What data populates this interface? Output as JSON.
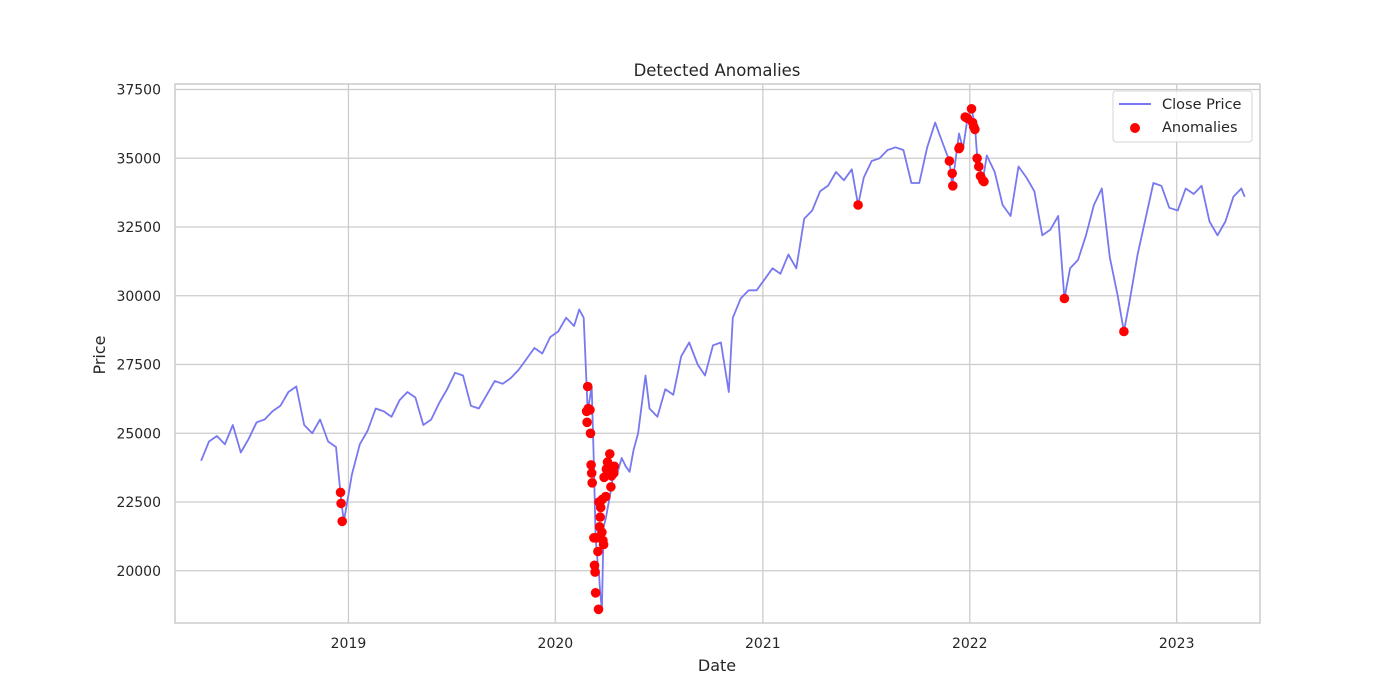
{
  "chart_data": {
    "type": "line",
    "title": "Detected Anomalies",
    "xlabel": "Date",
    "ylabel": "Price",
    "xlim": [
      "2018-03-01",
      "2023-05-28"
    ],
    "ylim": [
      18100,
      37700
    ],
    "x_ticks": [
      "2019-01-01",
      "2020-01-01",
      "2021-01-01",
      "2022-01-01",
      "2023-01-01"
    ],
    "x_tick_labels": [
      "2019",
      "2020",
      "2021",
      "2022",
      "2023"
    ],
    "y_ticks": [
      20000,
      22500,
      25000,
      27500,
      30000,
      32500,
      35000,
      37500
    ],
    "y_tick_labels": [
      "20000",
      "22500",
      "25000",
      "27500",
      "30000",
      "32500",
      "35000",
      "37500"
    ],
    "grid": true,
    "legend_position": "top-right",
    "series": [
      {
        "name": "Close Price",
        "kind": "line",
        "color": "#7878f0",
        "points": [
          [
            "2018-04-16",
            24000
          ],
          [
            "2018-04-30",
            24700
          ],
          [
            "2018-05-14",
            24900
          ],
          [
            "2018-05-28",
            24600
          ],
          [
            "2018-06-11",
            25300
          ],
          [
            "2018-06-25",
            24300
          ],
          [
            "2018-07-09",
            24800
          ],
          [
            "2018-07-23",
            25400
          ],
          [
            "2018-08-06",
            25500
          ],
          [
            "2018-08-20",
            25800
          ],
          [
            "2018-09-03",
            26000
          ],
          [
            "2018-09-17",
            26500
          ],
          [
            "2018-10-01",
            26700
          ],
          [
            "2018-10-15",
            25300
          ],
          [
            "2018-10-29",
            25000
          ],
          [
            "2018-11-12",
            25500
          ],
          [
            "2018-11-26",
            24700
          ],
          [
            "2018-12-10",
            24500
          ],
          [
            "2018-12-17",
            23000
          ],
          [
            "2018-12-20",
            22400
          ],
          [
            "2018-12-24",
            21800
          ],
          [
            "2019-01-07",
            23500
          ],
          [
            "2019-01-21",
            24600
          ],
          [
            "2019-02-04",
            25100
          ],
          [
            "2019-02-18",
            25900
          ],
          [
            "2019-03-04",
            25800
          ],
          [
            "2019-03-18",
            25600
          ],
          [
            "2019-04-01",
            26200
          ],
          [
            "2019-04-15",
            26500
          ],
          [
            "2019-04-29",
            26300
          ],
          [
            "2019-05-13",
            25300
          ],
          [
            "2019-05-27",
            25500
          ],
          [
            "2019-06-10",
            26100
          ],
          [
            "2019-06-24",
            26600
          ],
          [
            "2019-07-08",
            27200
          ],
          [
            "2019-07-22",
            27100
          ],
          [
            "2019-08-05",
            26000
          ],
          [
            "2019-08-19",
            25900
          ],
          [
            "2019-09-02",
            26400
          ],
          [
            "2019-09-16",
            26900
          ],
          [
            "2019-09-30",
            26800
          ],
          [
            "2019-10-14",
            27000
          ],
          [
            "2019-10-28",
            27300
          ],
          [
            "2019-11-11",
            27700
          ],
          [
            "2019-11-25",
            28100
          ],
          [
            "2019-12-09",
            27900
          ],
          [
            "2019-12-23",
            28500
          ],
          [
            "2020-01-06",
            28700
          ],
          [
            "2020-01-20",
            29200
          ],
          [
            "2020-02-03",
            28900
          ],
          [
            "2020-02-12",
            29500
          ],
          [
            "2020-02-20",
            29200
          ],
          [
            "2020-02-27",
            25800
          ],
          [
            "2020-03-05",
            26700
          ],
          [
            "2020-03-09",
            23850
          ],
          [
            "2020-03-12",
            21200
          ],
          [
            "2020-03-16",
            20200
          ],
          [
            "2020-03-18",
            19900
          ],
          [
            "2020-03-20",
            19200
          ],
          [
            "2020-03-23",
            18600
          ],
          [
            "2020-03-26",
            21600
          ],
          [
            "2020-03-30",
            21900
          ],
          [
            "2020-04-06",
            22700
          ],
          [
            "2020-04-13",
            23600
          ],
          [
            "2020-04-20",
            23600
          ],
          [
            "2020-04-27",
            24100
          ],
          [
            "2020-05-04",
            23800
          ],
          [
            "2020-05-11",
            23600
          ],
          [
            "2020-05-18",
            24400
          ],
          [
            "2020-05-26",
            25000
          ],
          [
            "2020-06-08",
            27100
          ],
          [
            "2020-06-15",
            25900
          ],
          [
            "2020-06-29",
            25600
          ],
          [
            "2020-07-13",
            26600
          ],
          [
            "2020-07-27",
            26400
          ],
          [
            "2020-08-10",
            27800
          ],
          [
            "2020-08-24",
            28300
          ],
          [
            "2020-09-08",
            27500
          ],
          [
            "2020-09-21",
            27100
          ],
          [
            "2020-10-05",
            28200
          ],
          [
            "2020-10-19",
            28300
          ],
          [
            "2020-11-02",
            26500
          ],
          [
            "2020-11-09",
            29200
          ],
          [
            "2020-11-23",
            29900
          ],
          [
            "2020-12-07",
            30200
          ],
          [
            "2020-12-21",
            30200
          ],
          [
            "2021-01-04",
            30600
          ],
          [
            "2021-01-18",
            31000
          ],
          [
            "2021-02-01",
            30800
          ],
          [
            "2021-02-15",
            31500
          ],
          [
            "2021-03-01",
            31000
          ],
          [
            "2021-03-15",
            32800
          ],
          [
            "2021-03-29",
            33100
          ],
          [
            "2021-04-12",
            33800
          ],
          [
            "2021-04-26",
            34000
          ],
          [
            "2021-05-10",
            34500
          ],
          [
            "2021-05-24",
            34200
          ],
          [
            "2021-06-07",
            34600
          ],
          [
            "2021-06-18",
            33300
          ],
          [
            "2021-06-28",
            34300
          ],
          [
            "2021-07-12",
            34900
          ],
          [
            "2021-07-26",
            35000
          ],
          [
            "2021-08-09",
            35300
          ],
          [
            "2021-08-23",
            35400
          ],
          [
            "2021-09-06",
            35300
          ],
          [
            "2021-09-20",
            34100
          ],
          [
            "2021-10-04",
            34100
          ],
          [
            "2021-10-18",
            35400
          ],
          [
            "2021-11-01",
            36300
          ],
          [
            "2021-11-08",
            35900
          ],
          [
            "2021-11-26",
            34900
          ],
          [
            "2021-12-01",
            34000
          ],
          [
            "2021-12-13",
            35900
          ],
          [
            "2021-12-20",
            35350
          ],
          [
            "2021-12-28",
            36450
          ],
          [
            "2022-01-04",
            36800
          ],
          [
            "2022-01-10",
            36200
          ],
          [
            "2022-01-14",
            35100
          ],
          [
            "2022-01-24",
            34200
          ],
          [
            "2022-01-31",
            35100
          ],
          [
            "2022-02-14",
            34500
          ],
          [
            "2022-02-28",
            33300
          ],
          [
            "2022-03-14",
            32900
          ],
          [
            "2022-03-28",
            34700
          ],
          [
            "2022-04-11",
            34300
          ],
          [
            "2022-04-25",
            33800
          ],
          [
            "2022-05-09",
            32200
          ],
          [
            "2022-05-23",
            32400
          ],
          [
            "2022-06-06",
            32900
          ],
          [
            "2022-06-17",
            29900
          ],
          [
            "2022-06-27",
            31000
          ],
          [
            "2022-07-11",
            31300
          ],
          [
            "2022-07-25",
            32200
          ],
          [
            "2022-08-08",
            33300
          ],
          [
            "2022-08-22",
            33900
          ],
          [
            "2022-09-05",
            31400
          ],
          [
            "2022-09-19",
            30000
          ],
          [
            "2022-09-30",
            28700
          ],
          [
            "2022-10-10",
            29800
          ],
          [
            "2022-10-24",
            31500
          ],
          [
            "2022-11-07",
            32800
          ],
          [
            "2022-11-21",
            34100
          ],
          [
            "2022-12-05",
            34000
          ],
          [
            "2022-12-19",
            33200
          ],
          [
            "2023-01-03",
            33100
          ],
          [
            "2023-01-17",
            33900
          ],
          [
            "2023-01-31",
            33700
          ],
          [
            "2023-02-14",
            34000
          ],
          [
            "2023-02-28",
            32700
          ],
          [
            "2023-03-14",
            32200
          ],
          [
            "2023-03-28",
            32700
          ],
          [
            "2023-04-11",
            33600
          ],
          [
            "2023-04-25",
            33900
          ],
          [
            "2023-05-01",
            33600
          ]
        ]
      },
      {
        "name": "Anomalies",
        "kind": "scatter",
        "color": "#ff0000",
        "points": [
          [
            "2018-12-18",
            22850
          ],
          [
            "2018-12-19",
            22450
          ],
          [
            "2018-12-21",
            21800
          ],
          [
            "2020-02-25",
            25800
          ],
          [
            "2020-02-26",
            25400
          ],
          [
            "2020-02-27",
            26700
          ],
          [
            "2020-02-28",
            25900
          ],
          [
            "2020-03-02",
            25850
          ],
          [
            "2020-03-03",
            25000
          ],
          [
            "2020-03-04",
            23850
          ],
          [
            "2020-03-05",
            23550
          ],
          [
            "2020-03-06",
            23200
          ],
          [
            "2020-03-09",
            21200
          ],
          [
            "2020-03-10",
            20200
          ],
          [
            "2020-03-11",
            19950
          ],
          [
            "2020-03-12",
            19200
          ],
          [
            "2020-03-13",
            21200
          ],
          [
            "2020-03-16",
            20700
          ],
          [
            "2020-03-17",
            18600
          ],
          [
            "2020-03-18",
            22500
          ],
          [
            "2020-03-19",
            21600
          ],
          [
            "2020-03-20",
            21950
          ],
          [
            "2020-03-21",
            22300
          ],
          [
            "2020-03-23",
            21400
          ],
          [
            "2020-03-24",
            22600
          ],
          [
            "2020-03-25",
            21100
          ],
          [
            "2020-03-26",
            20950
          ],
          [
            "2020-03-27",
            23400
          ],
          [
            "2020-03-30",
            22700
          ],
          [
            "2020-03-31",
            23700
          ],
          [
            "2020-04-01",
            23500
          ],
          [
            "2020-04-02",
            23950
          ],
          [
            "2020-04-06",
            24250
          ],
          [
            "2020-04-07",
            23700
          ],
          [
            "2020-04-08",
            23050
          ],
          [
            "2020-04-09",
            23450
          ],
          [
            "2020-04-13",
            23550
          ],
          [
            "2020-04-14",
            23800
          ],
          [
            "2021-06-18",
            33300
          ],
          [
            "2021-11-26",
            34900
          ],
          [
            "2021-12-01",
            34450
          ],
          [
            "2021-12-02",
            34000
          ],
          [
            "2021-12-13",
            35350
          ],
          [
            "2021-12-14",
            35400
          ],
          [
            "2021-12-24",
            36500
          ],
          [
            "2021-12-28",
            36450
          ],
          [
            "2022-01-04",
            36800
          ],
          [
            "2022-01-06",
            36300
          ],
          [
            "2022-01-08",
            36150
          ],
          [
            "2022-01-10",
            36050
          ],
          [
            "2022-01-14",
            35000
          ],
          [
            "2022-01-17",
            34700
          ],
          [
            "2022-01-20",
            34350
          ],
          [
            "2022-01-24",
            34200
          ],
          [
            "2022-01-26",
            34150
          ],
          [
            "2022-06-17",
            29900
          ],
          [
            "2022-09-30",
            28700
          ]
        ]
      }
    ]
  }
}
